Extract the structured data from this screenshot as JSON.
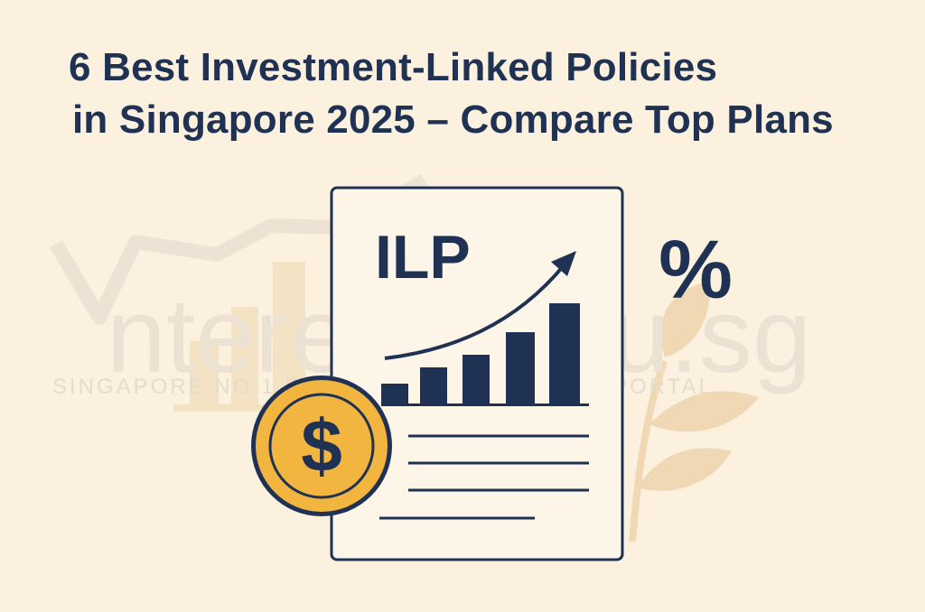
{
  "title": {
    "line1": "6 Best Investment-Linked Policies",
    "line2": "in Singapore 2025 – Compare Top Plans"
  },
  "watermark": {
    "brand": "nterestGuru.sg",
    "tagline": "SINGAPORE NO.1 FINANCIAL COMPARISON PORTAL"
  },
  "document": {
    "label": "ILP"
  },
  "percent_symbol": "%",
  "coin_symbol": "$",
  "colors": {
    "background": "#fbf1de",
    "navy": "#1f3254",
    "gold": "#f2b640",
    "plant": "#efd9b4",
    "watermark": "#ebe2d3"
  },
  "icons": [
    "document-icon",
    "trend-arrow-icon",
    "bar-chart-icon",
    "dollar-coin-icon",
    "percent-icon",
    "plant-icon"
  ]
}
